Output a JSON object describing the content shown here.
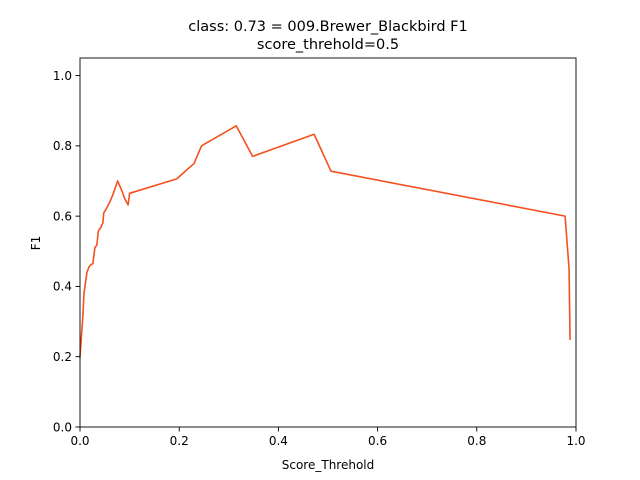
{
  "chart_data": {
    "type": "line",
    "title_line1": "class: 0.73 = 009.Brewer_Blackbird F1",
    "title_line2": "score_threhold=0.5",
    "xlabel": "Score_Threhold",
    "ylabel": "F1",
    "xlim": [
      0.0,
      1.0
    ],
    "ylim": [
      0.0,
      1.05
    ],
    "xticks": [
      0.0,
      0.2,
      0.4,
      0.6,
      0.8,
      1.0
    ],
    "xtick_labels": [
      "0.0",
      "0.2",
      "0.4",
      "0.6",
      "0.8",
      "1.0"
    ],
    "yticks": [
      0.0,
      0.2,
      0.4,
      0.6,
      0.8,
      1.0
    ],
    "ytick_labels": [
      "0.0",
      "0.2",
      "0.4",
      "0.6",
      "0.8",
      "1.0"
    ],
    "grid": false,
    "line_color": "#f4511e",
    "series": [
      {
        "x": [
          0.0,
          0.004,
          0.006,
          0.008,
          0.011,
          0.014,
          0.018,
          0.022,
          0.026,
          0.03,
          0.034,
          0.037,
          0.041,
          0.046,
          0.048,
          0.052,
          0.06,
          0.066,
          0.076,
          0.085,
          0.09,
          0.097,
          0.1,
          0.195,
          0.23,
          0.245,
          0.315,
          0.348,
          0.472,
          0.506,
          0.978,
          0.986,
          0.988
        ],
        "y": [
          0.2,
          0.28,
          0.32,
          0.38,
          0.41,
          0.44,
          0.455,
          0.462,
          0.465,
          0.51,
          0.518,
          0.558,
          0.566,
          0.58,
          0.61,
          0.618,
          0.64,
          0.66,
          0.7,
          0.67,
          0.65,
          0.632,
          0.665,
          0.706,
          0.75,
          0.8,
          0.857,
          0.77,
          0.833,
          0.728,
          0.6,
          0.45,
          0.25
        ]
      }
    ]
  }
}
